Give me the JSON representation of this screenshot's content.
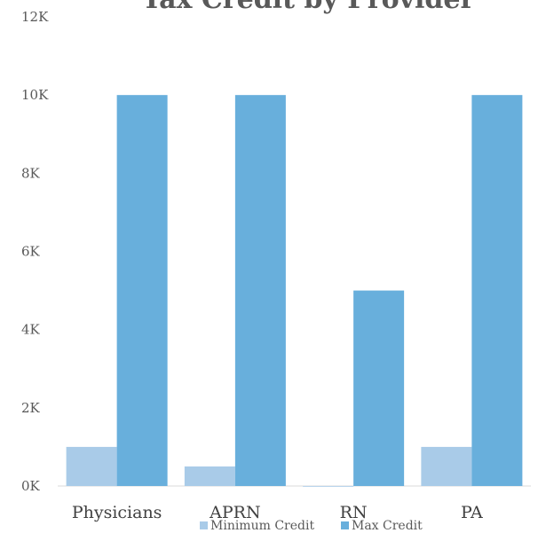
{
  "chart_data": {
    "type": "bar",
    "title": "Tax Credit by Provider",
    "categories": [
      "Physicians",
      "APRN",
      "RN",
      "PA"
    ],
    "series": [
      {
        "name": "Minimum Credit",
        "values": [
          1000,
          500,
          0,
          1000
        ]
      },
      {
        "name": "Max Credit",
        "values": [
          10000,
          10000,
          5000,
          10000
        ]
      }
    ],
    "yticks": [
      "0K",
      "2K",
      "4K",
      "6K",
      "8K",
      "10K",
      "12K"
    ],
    "ylim": [
      0,
      12000
    ],
    "xlabel": "",
    "ylabel": "",
    "grid": false,
    "legend_position": "bottom",
    "colors": [
      "#a9cbe8",
      "#68afdc"
    ]
  }
}
